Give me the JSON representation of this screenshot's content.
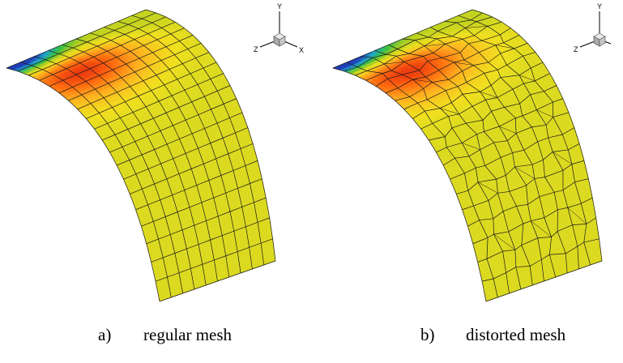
{
  "panels": [
    {
      "label": "a)",
      "caption": "regular mesh",
      "distorted": false,
      "show_x_label": true
    },
    {
      "label": "b)",
      "caption": "distorted mesh",
      "distorted": true,
      "show_x_label": false
    }
  ],
  "axes": {
    "x": "X",
    "y": "Y",
    "z": "Z"
  },
  "colormap": [
    "#1f3fb8",
    "#20a8c8",
    "#3ac040",
    "#b8d020",
    "#f0e020",
    "#ffb020",
    "#ff6a10",
    "#e01c10"
  ],
  "mesh_line_color": "#1a1a1a",
  "surface_base_color": "#e8e020"
}
